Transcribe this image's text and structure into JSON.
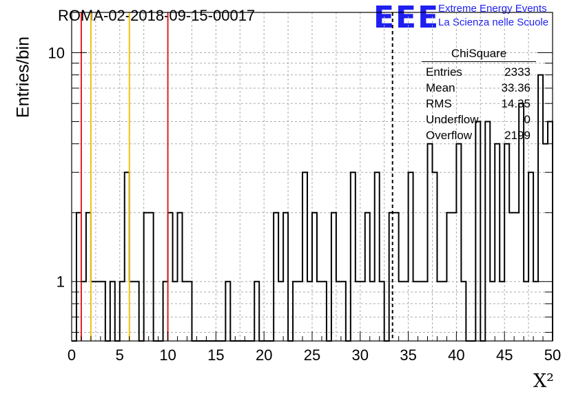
{
  "header": {
    "run_title": "ROMA-02-2018-09-15-00017",
    "logo_text": "EEE",
    "logo_line1": "Extreme Energy Events",
    "logo_line2": "La Scienza nelle Scuole"
  },
  "stats": {
    "title": "ChiSquare",
    "rows": [
      {
        "label": "Entries",
        "value": "2333"
      },
      {
        "label": "Mean",
        "value": "33.36"
      },
      {
        "label": "RMS",
        "value": "14.35"
      },
      {
        "label": "Underflow",
        "value": "0"
      },
      {
        "label": "Overflow",
        "value": "2199"
      }
    ]
  },
  "chart_data": {
    "type": "bar",
    "histogram_style": "step",
    "title": "ROMA-02-2018-09-15-00017",
    "xlabel": "X²",
    "ylabel": "Entries/bin",
    "xlim": [
      0,
      50
    ],
    "ylim": [
      0.55,
      15
    ],
    "y_scale": "log",
    "grid": true,
    "bin_width": 0.5,
    "x_ticks": [
      "0",
      "5",
      "10",
      "15",
      "20",
      "25",
      "30",
      "35",
      "40",
      "45",
      "50"
    ],
    "y_ticks": [
      "1",
      "10"
    ],
    "bins": [
      [
        0.5,
        2
      ],
      [
        1.0,
        1
      ],
      [
        1.5,
        2
      ],
      [
        2.0,
        1
      ],
      [
        2.5,
        1
      ],
      [
        3.0,
        1
      ],
      [
        3.5,
        0
      ],
      [
        4.0,
        1
      ],
      [
        5.0,
        1
      ],
      [
        5.5,
        3
      ],
      [
        6.0,
        1
      ],
      [
        6.5,
        1
      ],
      [
        7.5,
        2
      ],
      [
        8.0,
        2
      ],
      [
        9.5,
        1
      ],
      [
        10.0,
        2
      ],
      [
        10.5,
        1
      ],
      [
        11.0,
        2
      ],
      [
        11.5,
        1
      ],
      [
        12.0,
        1
      ],
      [
        16.0,
        1
      ],
      [
        19.0,
        1
      ],
      [
        21.0,
        2
      ],
      [
        21.5,
        1
      ],
      [
        22.0,
        2
      ],
      [
        23.0,
        1
      ],
      [
        23.5,
        1
      ],
      [
        24.0,
        3
      ],
      [
        24.5,
        1
      ],
      [
        25.0,
        2
      ],
      [
        25.5,
        1
      ],
      [
        26.0,
        1
      ],
      [
        27.0,
        2
      ],
      [
        27.5,
        1
      ],
      [
        28.0,
        1
      ],
      [
        29.0,
        3
      ],
      [
        29.5,
        1
      ],
      [
        30.0,
        1
      ],
      [
        30.5,
        2
      ],
      [
        31.0,
        1
      ],
      [
        31.5,
        3
      ],
      [
        32.0,
        1
      ],
      [
        33.0,
        2
      ],
      [
        33.5,
        2
      ],
      [
        34.0,
        1
      ],
      [
        34.5,
        1
      ],
      [
        35.0,
        3
      ],
      [
        35.5,
        1
      ],
      [
        36.0,
        1
      ],
      [
        36.5,
        1
      ],
      [
        37.0,
        4
      ],
      [
        37.5,
        3
      ],
      [
        38.0,
        1
      ],
      [
        38.5,
        1
      ],
      [
        39.0,
        2
      ],
      [
        39.5,
        2
      ],
      [
        40.0,
        4
      ],
      [
        40.5,
        1
      ],
      [
        42.0,
        5
      ],
      [
        43.0,
        5
      ],
      [
        43.5,
        1
      ],
      [
        44.0,
        4
      ],
      [
        44.5,
        1
      ],
      [
        45.0,
        4
      ],
      [
        45.5,
        2
      ],
      [
        46.0,
        2
      ],
      [
        46.5,
        6
      ],
      [
        47.0,
        1
      ],
      [
        47.5,
        3
      ],
      [
        48.0,
        1
      ],
      [
        48.5,
        8
      ],
      [
        49.0,
        4
      ],
      [
        49.5,
        5
      ]
    ],
    "reference_lines": [
      {
        "x": 1,
        "color": "#e02020"
      },
      {
        "x": 2,
        "color": "#f0c010"
      },
      {
        "x": 6,
        "color": "#f0c010"
      },
      {
        "x": 10,
        "color": "#e02020"
      }
    ],
    "mean_line": {
      "x": 33.36,
      "style": "dashed",
      "color": "#000000"
    }
  }
}
